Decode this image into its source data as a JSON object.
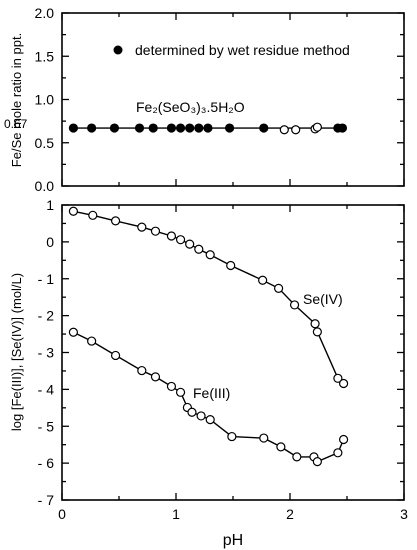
{
  "chart_data": [
    {
      "type": "scatter",
      "title": "",
      "xlabel": "",
      "ylabel": "Fe/Se mole ratio in ppt.",
      "xlim": [
        0,
        3
      ],
      "ylim": [
        0,
        2
      ],
      "x_ticks": [
        0,
        1,
        2,
        3
      ],
      "y_ticks": [
        0.0,
        0.5,
        1.0,
        1.5,
        2.0
      ],
      "y_tick_labels": [
        "0.0",
        "0.5",
        "1.0",
        "1.5",
        "2.0"
      ],
      "reference_line": {
        "y": 0.67,
        "label": "0.67"
      },
      "annotation": "Fe₂(SeO₃)₃.5H₂O",
      "legend": {
        "marker": "filled circle",
        "label": "determined by wet residue method",
        "position": "top"
      },
      "series": [
        {
          "marker": "filled",
          "x": [
            0.1,
            0.26,
            0.46,
            0.68,
            0.8,
            0.96,
            1.04,
            1.12,
            1.2,
            1.28,
            1.47,
            1.77,
            2.42,
            2.46
          ],
          "values": [
            0.67,
            0.67,
            0.67,
            0.67,
            0.67,
            0.67,
            0.67,
            0.67,
            0.67,
            0.67,
            0.67,
            0.67,
            0.67,
            0.67
          ]
        },
        {
          "marker": "open",
          "x": [
            1.95,
            2.05,
            2.22,
            2.24
          ],
          "values": [
            0.65,
            0.65,
            0.66,
            0.68
          ]
        }
      ]
    },
    {
      "type": "line",
      "title": "",
      "xlabel": "pH",
      "ylabel": "log [Fe(III)], [Se(IV)]  (mol/L)",
      "xlim": [
        0,
        3
      ],
      "ylim": [
        -7,
        1
      ],
      "x_ticks": [
        0,
        1,
        2,
        3
      ],
      "y_ticks": [
        1,
        0,
        -1,
        -2,
        -3,
        -4,
        -5,
        -6,
        -7
      ],
      "y_tick_labels": [
        "1",
        "0",
        "- 1",
        "- 2",
        "- 3",
        "- 4",
        "- 5",
        "- 6",
        "- 7"
      ],
      "series": [
        {
          "name": "Se(IV)",
          "marker": "open",
          "x": [
            0.1,
            0.27,
            0.47,
            0.7,
            0.82,
            0.96,
            1.04,
            1.12,
            1.2,
            1.3,
            1.48,
            1.76,
            1.9,
            2.04,
            2.22,
            2.24,
            2.42,
            2.47
          ],
          "values": [
            0.83,
            0.72,
            0.57,
            0.4,
            0.29,
            0.16,
            0.06,
            -0.06,
            -0.2,
            -0.35,
            -0.64,
            -1.04,
            -1.26,
            -1.71,
            -2.22,
            -2.44,
            -3.7,
            -3.84
          ]
        },
        {
          "name": "Fe(III)",
          "marker": "open",
          "x": [
            0.1,
            0.26,
            0.47,
            0.7,
            0.82,
            0.96,
            1.04,
            1.1,
            1.14,
            1.22,
            1.3,
            1.49,
            1.77,
            1.92,
            2.06,
            2.21,
            2.24,
            2.42,
            2.47
          ],
          "values": [
            -2.45,
            -2.69,
            -3.08,
            -3.49,
            -3.66,
            -3.92,
            -4.08,
            -4.49,
            -4.62,
            -4.72,
            -4.82,
            -5.28,
            -5.32,
            -5.56,
            -5.83,
            -5.83,
            -5.96,
            -5.72,
            -5.36
          ]
        }
      ]
    }
  ]
}
